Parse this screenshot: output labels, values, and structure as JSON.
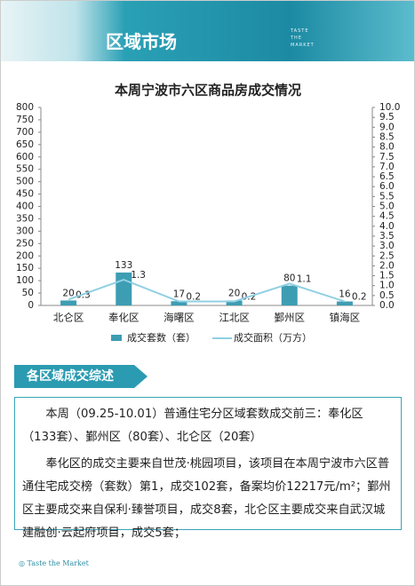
{
  "header": {
    "title": "区域市场",
    "subtitle": [
      "TASTE",
      "THE",
      "MARKET"
    ]
  },
  "chart_data": {
    "type": "bar",
    "title": "本周宁波市六区商品房成交情况",
    "categories": [
      "北仑区",
      "奉化区",
      "海曙区",
      "江北区",
      "鄞州区",
      "镇海区"
    ],
    "series": [
      {
        "name": "成交套数（套）",
        "color": "#3d9db3",
        "type": "bar",
        "values": [
          20,
          133,
          17,
          20,
          80,
          16
        ]
      },
      {
        "name": "成交面积（万方）",
        "color": "#8fd0e3",
        "type": "line",
        "axis": "y2",
        "values": [
          0.3,
          1.3,
          0.2,
          0.2,
          1.1,
          0.2
        ]
      }
    ],
    "ylim": [
      0,
      800
    ],
    "yticks": [
      0,
      50,
      100,
      150,
      200,
      250,
      300,
      350,
      400,
      450,
      500,
      550,
      600,
      650,
      700,
      750,
      800
    ],
    "y2lim": [
      0,
      10
    ],
    "y2ticks": [
      {
        "value": 0,
        "label": "0.0"
      },
      {
        "value": 0.5,
        "label": "0.5"
      },
      {
        "value": 1,
        "label": "1.0"
      },
      {
        "value": 1.5,
        "label": "1.5"
      },
      {
        "value": 2,
        "label": "2.0"
      },
      {
        "value": 2.5,
        "label": "2.5"
      },
      {
        "value": 3,
        "label": "3.0"
      },
      {
        "value": 3.5,
        "label": "3.5"
      },
      {
        "value": 4,
        "label": "4.0"
      },
      {
        "value": 4.5,
        "label": "4.5"
      },
      {
        "value": 5,
        "label": "5.0"
      },
      {
        "value": 5.5,
        "label": "5.5"
      },
      {
        "value": 6,
        "label": "6.0"
      },
      {
        "value": 6.5,
        "label": "6.5"
      },
      {
        "value": 7,
        "label": "7.0"
      },
      {
        "value": 7.5,
        "label": "7.5"
      },
      {
        "value": 8,
        "label": "8.0"
      },
      {
        "value": 8.5,
        "label": "8.5"
      },
      {
        "value": 9,
        "label": "9.0"
      },
      {
        "value": 9.5,
        "label": "9.5"
      },
      {
        "value": 10,
        "label": "10.0"
      }
    ],
    "grid": false,
    "legend": "bottom"
  },
  "section": {
    "title": "各区域成交综述"
  },
  "paragraphs": [
    "本周（09.25-10.01）普通住宅分区域套数成交前三：奉化区（133套）、鄞州区（80套）、北仑区（20套）",
    "奉化区的成交主要来自世茂·桃园项目，该项目在本周宁波市六区普通住宅成交榜（套数）第1，成交102套，备案均价12217元/m²；鄞州区主要成交来自保利·臻誉项目，成交8套，北仑区主要成交来自武汉城建融创·云起府项目，成交5套；"
  ],
  "footer": "Taste the Market"
}
